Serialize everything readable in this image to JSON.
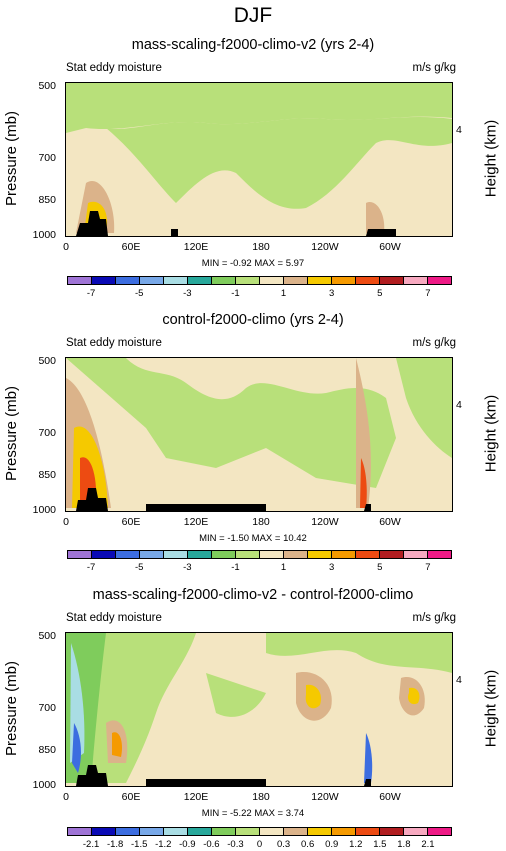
{
  "figure": {
    "title": "DJF"
  },
  "panels": [
    {
      "title": "mass-scaling-f2000-climo-v2 (yrs 2-4)",
      "subtitle_left": "Stat eddy moisture",
      "subtitle_right": "m/s g/kg",
      "stats": "MIN = -0.92  MAX =  5.97",
      "colorbar_labels": [
        "-7",
        "-5",
        "-3",
        "-1",
        "1",
        "3",
        "5",
        "7"
      ]
    },
    {
      "title": "control-f2000-climo (yrs 2-4)",
      "subtitle_left": "Stat eddy moisture",
      "subtitle_right": "m/s g/kg",
      "stats": "MIN = -1.50  MAX = 10.42",
      "colorbar_labels": [
        "-7",
        "-5",
        "-3",
        "-1",
        "1",
        "3",
        "5",
        "7"
      ]
    },
    {
      "title": "mass-scaling-f2000-climo-v2 - control-f2000-climo",
      "subtitle_left": "Stat eddy moisture",
      "subtitle_right": "m/s g/kg",
      "stats": "MIN = -5.22  MAX =  3.74",
      "colorbar_labels": [
        "-2.1",
        "-1.8",
        "-1.5",
        "-1.2",
        "-0.9",
        "-0.6",
        "-0.3",
        "0",
        "0.3",
        "0.6",
        "0.9",
        "1.2",
        "1.5",
        "1.8",
        "2.1"
      ]
    }
  ],
  "axes": {
    "ylabel_left": "Pressure (mb)",
    "ylabel_right": "Height (km)",
    "pressure_ticks": [
      "500",
      "700",
      "850",
      "1000"
    ],
    "height_ticks": [
      "4"
    ],
    "x_ticks": [
      "0",
      "60E",
      "120E",
      "180",
      "120W",
      "60W"
    ]
  },
  "colormap": [
    "#9f74d6",
    "#0a0ab5",
    "#3c6de0",
    "#78a8e8",
    "#a9dde4",
    "#28a89b",
    "#7fcc5c",
    "#b8e07a",
    "#f3e6c2",
    "#dbb38a",
    "#f5c900",
    "#f59a00",
    "#ed4b12",
    "#b11d20",
    "#f7a9c0",
    "#ee1a86"
  ],
  "chart_data": [
    {
      "type": "heatmap",
      "title": "mass-scaling-f2000-climo-v2 (yrs 2-4)",
      "x_range": [
        0,
        360
      ],
      "y_range_pressure_mb": [
        1000,
        500
      ],
      "contour_levels": [
        -8,
        -7,
        -6,
        -5,
        -4,
        -3,
        -2,
        -1,
        0,
        1,
        2,
        3,
        4,
        5,
        6,
        7,
        8
      ],
      "min": -0.92,
      "max": 5.97,
      "features": [
        {
          "region": "0-40E near surface",
          "value_range": [
            2,
            5.97
          ]
        },
        {
          "region": "Andes ~70W near 900-1000 mb",
          "value_range": [
            1,
            4
          ]
        }
      ]
    },
    {
      "type": "heatmap",
      "title": "control-f2000-climo (yrs 2-4)",
      "x_range": [
        0,
        360
      ],
      "y_range_pressure_mb": [
        1000,
        500
      ],
      "contour_levels": [
        -8,
        -7,
        -6,
        -5,
        -4,
        -3,
        -2,
        -1,
        0,
        1,
        2,
        3,
        4,
        5,
        6,
        7,
        8
      ],
      "min": -1.5,
      "max": 10.42,
      "features": [
        {
          "region": "0-40E 800-950 mb",
          "value_range": [
            3,
            10.42
          ]
        },
        {
          "region": "Andes ~70W",
          "value_range": [
            2,
            8
          ]
        }
      ]
    },
    {
      "type": "heatmap",
      "title": "mass-scaling-f2000-climo-v2 - control-f2000-climo",
      "x_range": [
        0,
        360
      ],
      "y_range_pressure_mb": [
        1000,
        500
      ],
      "contour_levels": [
        -2.4,
        -2.1,
        -1.8,
        -1.5,
        -1.2,
        -0.9,
        -0.6,
        -0.3,
        0,
        0.3,
        0.6,
        0.9,
        1.2,
        1.5,
        1.8,
        2.1,
        2.4
      ],
      "min": -5.22,
      "max": 3.74,
      "features": [
        {
          "region": "0-30E 800-950 mb",
          "value_range": [
            -5.22,
            -0.6
          ]
        },
        {
          "region": "40-60E ~850 mb",
          "value_range": [
            0.6,
            1.5
          ]
        },
        {
          "region": "140-200W mid-levels",
          "value_range": [
            0.3,
            0.9
          ]
        }
      ]
    }
  ]
}
